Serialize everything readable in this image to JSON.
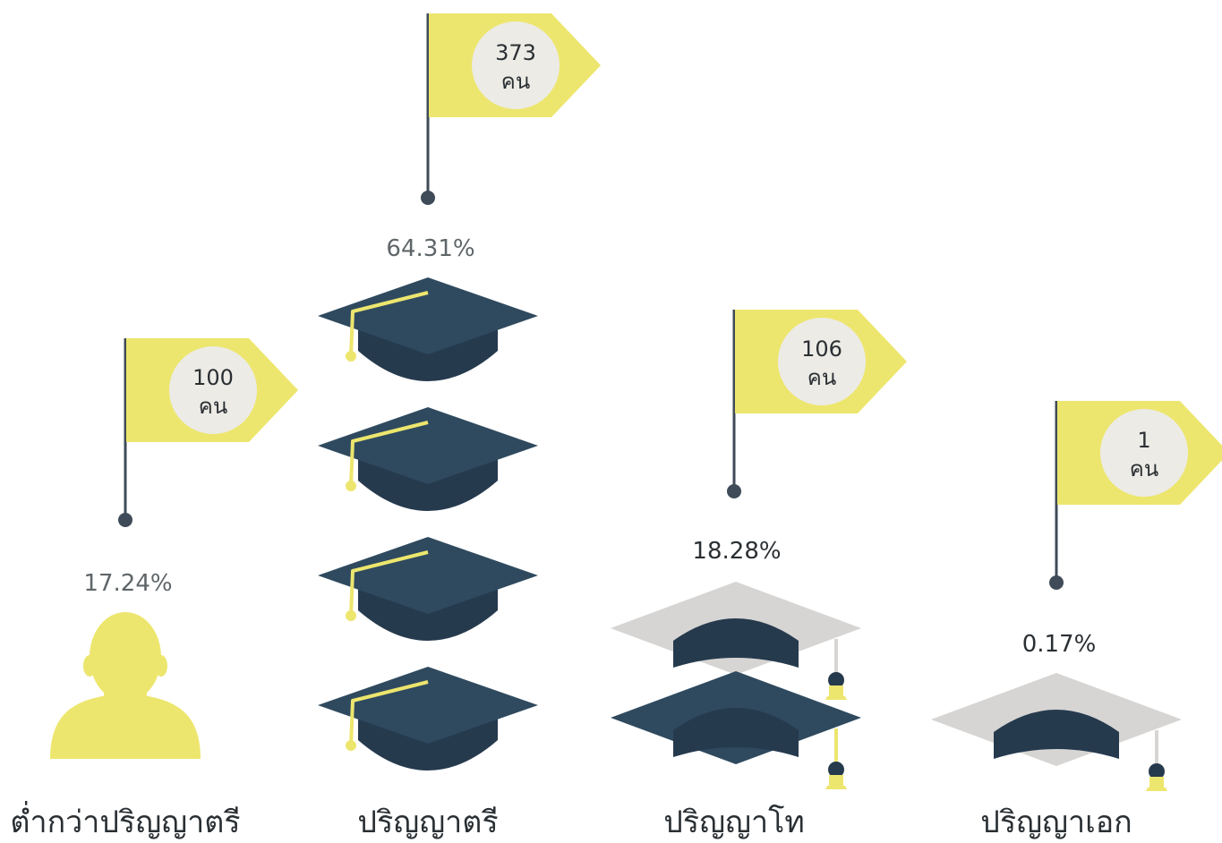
{
  "chart_data": {
    "type": "bar",
    "categories": [
      "ต่ำกว่าปริญญาตรี",
      "ปริญญาตรี",
      "ปริญญาโท",
      "ปริญญาเอก"
    ],
    "values": [
      100,
      373,
      106,
      1
    ],
    "percent_labels": [
      "17.24%",
      "64.31%",
      "18.28%",
      "0.17%"
    ],
    "count_labels": [
      "100",
      "373",
      "106",
      "1"
    ],
    "unit_label": "คน",
    "icons": [
      "person-icon",
      "graduation-cap-icon",
      "graduation-cap-icon",
      "graduation-cap-icon"
    ],
    "icon_counts": [
      1,
      4,
      2,
      1
    ],
    "title": "",
    "xlabel": "",
    "ylabel": ""
  },
  "colors": {
    "flag": "#ede66e",
    "flag_badge": "#ecebe5",
    "navy": "#2f4a5f",
    "navy_dark": "#263a4e",
    "pole": "#3f4b58",
    "gray_cap": "#d6d5d3",
    "percent_text": "#5f6669",
    "percent_text_dark": "#2a2f33",
    "label_text": "#2a2f33"
  }
}
